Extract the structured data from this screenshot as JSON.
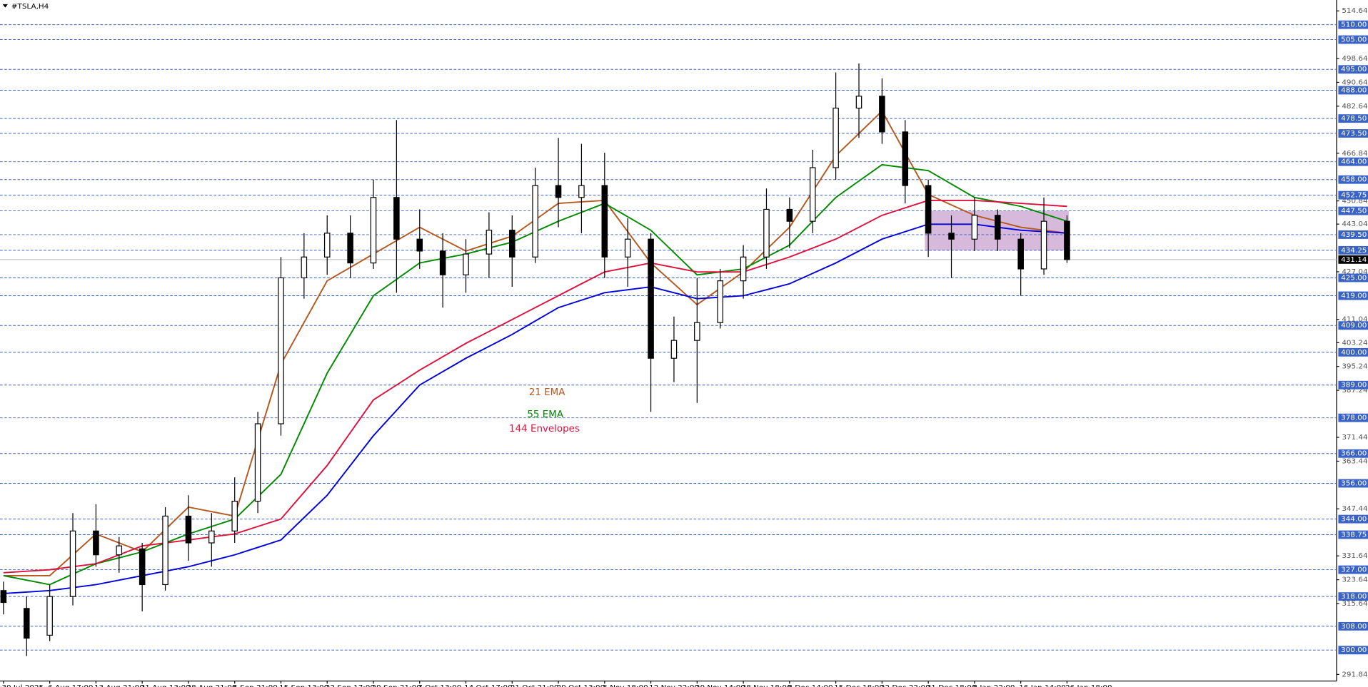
{
  "chart_data": {
    "type": "candlestick",
    "title": "#TSLA,H4",
    "categories": [
      "30 Jul 2025",
      null,
      "6 Aug 17:00",
      null,
      "13 Aug 21:00",
      null,
      "21 Aug 13:00",
      null,
      "28 Aug 21:00",
      null,
      "5 Sep 21:00",
      null,
      "15 Sep 13:00",
      null,
      "22 Sep 17:00",
      null,
      "29 Sep 21:00",
      null,
      "7 Oct 13:00",
      null,
      "14 Oct 17:00",
      null,
      "21 Oct 21:00",
      null,
      "29 Oct 13:00",
      null,
      "5 Nov 18:00",
      null,
      "12 Nov 22:00",
      null,
      "20 Nov 14:00",
      null,
      "28 Nov 18:00",
      null,
      "8 Dec 14:00",
      null,
      "15 Dec 18:00",
      null,
      "22 Dec 22:00",
      null,
      "31 Dec 18:00",
      null,
      "8 Jan 22:00",
      null,
      "16 Jan 14:00",
      null,
      "26 Jan 18:00"
    ],
    "open": [
      320,
      314,
      305,
      318,
      340,
      332,
      334,
      322,
      345,
      336,
      340,
      350,
      376,
      425,
      432,
      440,
      430,
      452,
      438,
      434,
      426,
      433,
      441,
      432,
      456,
      452,
      456,
      432,
      438,
      398,
      404,
      410,
      424,
      432,
      448,
      444,
      462,
      482,
      486,
      474,
      456,
      440,
      438,
      446,
      438,
      428,
      444
    ],
    "high": [
      323,
      318,
      322,
      346,
      349,
      338,
      336,
      348,
      352,
      346,
      358,
      380,
      432,
      440,
      446,
      446,
      458,
      478,
      448,
      440,
      438,
      447,
      446,
      462,
      472,
      470,
      467,
      445,
      440,
      412,
      425,
      428,
      436,
      455,
      452,
      468,
      494,
      497,
      492,
      478,
      458,
      446,
      452,
      448,
      440,
      452,
      446
    ],
    "low": [
      312,
      298,
      303,
      315,
      328,
      326,
      313,
      320,
      330,
      328,
      336,
      346,
      372,
      418,
      426,
      425,
      428,
      420,
      428,
      415,
      420,
      425,
      422,
      430,
      442,
      440,
      425,
      422,
      380,
      390,
      383,
      408,
      418,
      428,
      435,
      440,
      458,
      472,
      470,
      450,
      432,
      425,
      434,
      434,
      419,
      426,
      430
    ],
    "close": [
      316,
      304,
      318,
      340,
      332,
      335,
      322,
      345,
      336,
      340,
      350,
      376,
      425,
      432,
      440,
      430,
      452,
      438,
      434,
      426,
      433,
      441,
      432,
      456,
      452,
      456,
      432,
      438,
      398,
      404,
      410,
      424,
      432,
      448,
      444,
      462,
      482,
      486,
      474,
      456,
      440,
      438,
      446,
      438,
      428,
      444,
      431.14
    ],
    "candle_color": "#000000",
    "series": [
      {
        "name": "21 EMA",
        "color": "#b5581f",
        "values": [
          325,
          325,
          325,
          332,
          339,
          336,
          333,
          340.5,
          348,
          346.5,
          345,
          370.5,
          396,
          410,
          424,
          428.5,
          433,
          437.5,
          442,
          438,
          434,
          436.5,
          439,
          444.5,
          450,
          450.5,
          451,
          440.5,
          430,
          423,
          416,
          421.5,
          427,
          434.5,
          442,
          454,
          466,
          473.5,
          481,
          467,
          453,
          449.5,
          446,
          444,
          442,
          441,
          440
        ]
      },
      {
        "name": "55 EMA",
        "color": "#008a00",
        "values": [
          325,
          323.5,
          322,
          325.5,
          329,
          331,
          333,
          336,
          339,
          341.5,
          344,
          351.5,
          359,
          376,
          393,
          406,
          419,
          424.5,
          430,
          431.5,
          433,
          435,
          437,
          440.5,
          444,
          447,
          450,
          445.5,
          441,
          433.5,
          426,
          427,
          428,
          432,
          436,
          444,
          452,
          457.5,
          463,
          462,
          461,
          456.5,
          452,
          450.5,
          449,
          446.5,
          444
        ]
      },
      {
        "name": "144 Envelopes",
        "color": "#e0103c",
        "values": [
          326,
          326.5,
          327,
          328,
          329,
          332,
          335,
          336,
          337,
          338,
          339,
          341.5,
          344,
          353,
          362,
          373,
          384,
          389,
          394,
          398.5,
          403,
          407,
          411,
          415,
          419,
          423,
          427,
          428.5,
          430,
          428.5,
          427,
          427,
          427,
          429.5,
          432,
          435,
          438,
          442,
          446,
          448.5,
          451,
          451,
          451,
          450.5,
          450,
          449.5,
          449
        ]
      },
      {
        "color": "#0000dd",
        "values": [
          319,
          319.5,
          320,
          321,
          322,
          323.5,
          325,
          326.5,
          328,
          330,
          332,
          334.5,
          337,
          344.5,
          352,
          362,
          372,
          380.5,
          389,
          393.5,
          398,
          402,
          406,
          410.5,
          415,
          417.5,
          420,
          421,
          422,
          420,
          418,
          418.5,
          419,
          421,
          423,
          426.5,
          430,
          434,
          438,
          440.5,
          443,
          443,
          443,
          442,
          441,
          440.5,
          440
        ]
      }
    ],
    "ylim": [
      289.6,
      518.3
    ],
    "yticks": [
      514.64,
      498.64,
      490.64,
      482.64,
      466.84,
      450.84,
      443.04,
      427.04,
      411.04,
      403.24,
      395.24,
      387.24,
      371.44,
      363.44,
      347.44,
      331.64,
      323.64,
      315.64,
      291.84
    ],
    "levels": [
      {
        "value": 510,
        "label": "510.00"
      },
      {
        "value": 505,
        "label": "505.00"
      },
      {
        "value": 495,
        "label": "495.00"
      },
      {
        "value": 488,
        "label": "488.00"
      },
      {
        "value": 478.5,
        "label": "478.50"
      },
      {
        "value": 473.5,
        "label": "473.50"
      },
      {
        "value": 464,
        "label": "464.00"
      },
      {
        "value": 458,
        "label": "458.00"
      },
      452.75,
      {
        "value": 447.5,
        "label": "447.50"
      },
      {
        "value": 439.5,
        "label": "439.50"
      },
      434.25,
      {
        "value": 425,
        "label": "425.00"
      },
      {
        "value": 419,
        "label": "419.00"
      },
      {
        "value": 409,
        "label": "409.00"
      },
      {
        "value": 400,
        "label": "400.00"
      },
      {
        "value": 389,
        "label": "389.00"
      },
      {
        "value": 378,
        "label": "378.00"
      },
      {
        "value": 366,
        "label": "366.00"
      },
      {
        "value": 356,
        "label": "356.00"
      },
      {
        "value": 344,
        "label": "344.00"
      },
      338.75,
      {
        "value": 327,
        "label": "327.00"
      },
      {
        "value": 318,
        "label": "318.00"
      },
      {
        "value": 308,
        "label": "308.00"
      },
      {
        "value": 300,
        "label": "300.00"
      }
    ],
    "level_color": "#3a63c8",
    "last_price": 431.14,
    "zone": {
      "from": 447.5,
      "to": 434.25,
      "color": "#c9a3cf"
    }
  }
}
